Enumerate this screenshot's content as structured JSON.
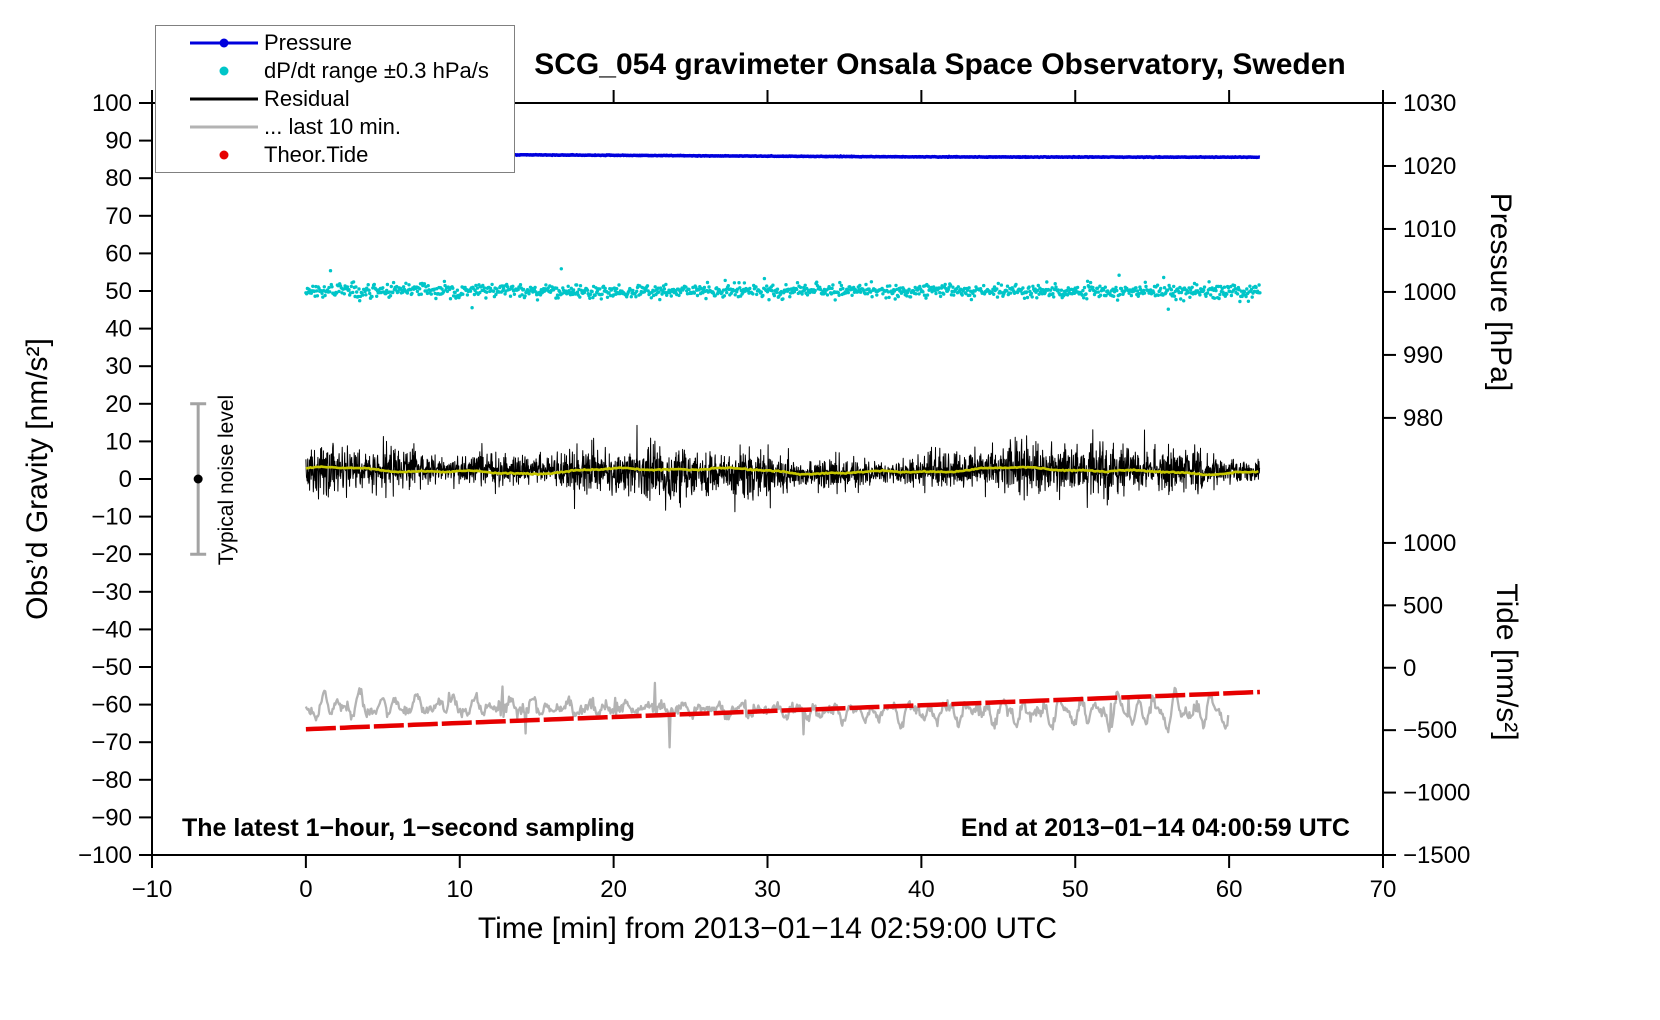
{
  "chart_data": {
    "type": "line",
    "title": "SCG_054 gravimeter Onsala Space Observatory, Sweden",
    "xlabel": "Time [min] from 2013−01−14 02:59:00 UTC",
    "ylabel": "Obs’d Gravity [nm/s²]",
    "y2label_pressure": "Pressure [hPa]",
    "y2label_tide": "Tide [nm/s²]",
    "annotations": {
      "sampling": "The latest 1−hour, 1−second sampling",
      "end_time": "End at 2013−01−14 04:00:59 UTC",
      "noise_label": "Typical noise level"
    },
    "legend": {
      "position": "top-left",
      "entries": [
        {
          "label": "Pressure",
          "color": "#0000dd",
          "marker": "line-dot"
        },
        {
          "label": "dP/dt range ±0.3 hPa/s",
          "color": "#00c5c8",
          "marker": "dot"
        },
        {
          "label": "Residual",
          "color": "#000000",
          "marker": "line"
        },
        {
          "label": "... last 10 min.",
          "color": "#b3b3b3",
          "marker": "line"
        },
        {
          "label": "Theor.Tide",
          "color": "#e60000",
          "marker": "dot"
        }
      ]
    },
    "xlim": [
      -10,
      70
    ],
    "ylim": [
      -100,
      100
    ],
    "grid": false,
    "xticks": [
      -10,
      0,
      10,
      20,
      30,
      40,
      50,
      60,
      70
    ],
    "yticks": [
      -100,
      -90,
      -80,
      -70,
      -60,
      -50,
      -40,
      -30,
      -20,
      -10,
      0,
      10,
      20,
      30,
      40,
      50,
      60,
      70,
      80,
      90,
      100
    ],
    "pressure_axis": {
      "tick_values": [
        1030,
        1020,
        1010,
        1000,
        990,
        980
      ],
      "tick_positions_left_units": [
        100,
        83.25,
        66.5,
        49.75,
        33,
        16.25
      ]
    },
    "tide_axis": {
      "tick_values": [
        1000,
        500,
        0,
        -500,
        -1000,
        -1500
      ],
      "tick_positions_left_units": [
        -17,
        -33.6,
        -50.2,
        -66.8,
        -83.4,
        -100
      ]
    },
    "noise_bar": {
      "x": -7,
      "y": 0,
      "half_range": 20
    },
    "series": [
      {
        "name": "Pressure",
        "render": "noisy-flat-line",
        "color": "#0000dd",
        "width": 3.5,
        "x_range": [
          0,
          62
        ],
        "y_left_units": [
          86.3,
          85.5
        ],
        "pressure_hpa": [
          1021.8,
          1021.4
        ]
      },
      {
        "name": "dP/dt range ±0.3 hPa/s",
        "render": "scatter-band",
        "color": "#00c5c8",
        "dot_radius": 1.7,
        "x_range": [
          0,
          62
        ],
        "center_left_units": 50,
        "center_pressure_hpa": 1000,
        "sigma_left_units": 0.9,
        "outlier_fraction": 0.013,
        "outlier_max_left_units": 6.5
      },
      {
        "name": "Residual",
        "render": "noise-hash",
        "color": "#000000",
        "width": 1,
        "x_range": [
          0,
          62
        ],
        "mean_left_units": 2,
        "typical_sigma_left_units": 3,
        "max_excursion_left_units": 13
      },
      {
        "name": "Residual smoothed",
        "render": "smooth-line",
        "color": "#c6c600",
        "width": 2.6,
        "x_range": [
          0,
          62
        ],
        "mean_left_units": 2.2,
        "wiggle_left_units": 0.8
      },
      {
        "name": "... last 10 min.",
        "render": "band-noise-line",
        "color": "#b3b3b3",
        "width": 2.3,
        "x_range": [
          0,
          60
        ],
        "mean_left_units": -61.3,
        "typical_amplitude_left_units": 4,
        "max_excursion_left_units": 9.5
      },
      {
        "name": "Theor.Tide",
        "render": "trend-line",
        "color": "#e60000",
        "width": 4.5,
        "dash": [
          30,
          4
        ],
        "x_range": [
          0,
          62
        ],
        "y_left_units": [
          -66.8,
          -56.4
        ],
        "tide_nms2": [
          -500,
          -185
        ]
      }
    ]
  }
}
